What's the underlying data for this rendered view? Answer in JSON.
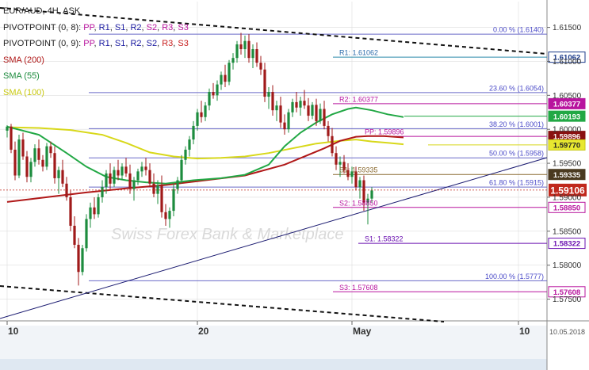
{
  "chart_data": {
    "type": "candlestick",
    "title": "EUR/AUD, 4H, ASK",
    "watermark": "Swiss Forex Bank & Marketplace",
    "date_stamp": "10.05.2018",
    "y_axis": {
      "range": [
        1.5718,
        1.6188
      ],
      "ticks": [
        "1.61500",
        "1.61000",
        "1.60500",
        "1.60000",
        "1.59500",
        "1.59000",
        "1.58500",
        "1.58000",
        "1.57500"
      ],
      "tick_values": [
        1.615,
        1.61,
        1.605,
        1.6,
        1.595,
        1.59,
        1.585,
        1.58,
        1.575
      ]
    },
    "x_axis": {
      "labels": [
        "10",
        "20",
        "May",
        "10"
      ],
      "label_bar_index": [
        0,
        48,
        87,
        129
      ]
    },
    "colors": {
      "bull": "#1d8c3e",
      "bear": "#a01a1a",
      "sma200": "#b01818",
      "sma55": "#22a845",
      "sma100": "#d8d81a",
      "pivot_line": "#1a1aa0",
      "fib_line": "#6a6ac8",
      "magenta": "#b8149e",
      "purple": "#6a10b0",
      "price": "#c0281c",
      "teal": "#2a8aaa",
      "brown": "#8a6a30",
      "grid": "#dddddd"
    },
    "legend": [
      {
        "prefix": "EUR/AUD, 4H, ASK",
        "color": "#222222",
        "items": []
      },
      {
        "prefix": "PIVOTPOINT (0, 8):",
        "color": "#222222",
        "items": [
          {
            "text": "PP",
            "color": "#b8149e"
          },
          {
            "text": "R1",
            "color": "#1a1aa0"
          },
          {
            "text": "S1",
            "color": "#1a1aa0"
          },
          {
            "text": "R2",
            "color": "#1a1aa0"
          },
          {
            "text": "S2",
            "color": "#b8149e"
          },
          {
            "text": "R3",
            "color": "#b8149e"
          },
          {
            "text": "S3",
            "color": "#b8149e"
          }
        ]
      },
      {
        "prefix": "PIVOTPOINT (0, 9):",
        "color": "#222222",
        "items": [
          {
            "text": "PP",
            "color": "#b8149e"
          },
          {
            "text": "R1",
            "color": "#1a1aa0"
          },
          {
            "text": "S1",
            "color": "#1a1aa0"
          },
          {
            "text": "R2",
            "color": "#1a1aa0"
          },
          {
            "text": "S2",
            "color": "#1a1aa0"
          },
          {
            "text": "R3",
            "color": "#c82020"
          },
          {
            "text": "S3",
            "color": "#c82020"
          }
        ]
      },
      {
        "prefix": "SMA (200)",
        "color": "#b01818",
        "items": []
      },
      {
        "prefix": "SMA (55)",
        "color": "#1d8c3e",
        "items": []
      },
      {
        "prefix": "SMA (100)",
        "color": "#c8c810",
        "items": []
      }
    ],
    "levels": [
      {
        "label": "0.00 % (1.6140)",
        "value": 1.614,
        "x_from": 112,
        "color": "#6a6ac8",
        "label_color": "#4a4ac8",
        "label_anchor": "right",
        "tag": null
      },
      {
        "label": "R1: 1.61062",
        "value": 1.61062,
        "x_from": 420,
        "color": "#2a8aaa",
        "label_color": "#2a6aaa",
        "label_anchor": "left",
        "tag": {
          "text": "1.61062",
          "bg": "#ffffff",
          "fg": "#1a3a8a",
          "border": "#1a3a8a"
        }
      },
      {
        "label": "23.60 % (1.6054)",
        "value": 1.6054,
        "x_from": 112,
        "color": "#6a6ac8",
        "label_color": "#4a4ac8",
        "label_anchor": "right",
        "tag": null
      },
      {
        "label": "R2: 1.60377",
        "value": 1.60377,
        "x_from": 420,
        "color": "#b8149e",
        "label_color": "#b8149e",
        "label_anchor": "left",
        "tag": {
          "text": "1.60377",
          "bg": "#b8149e",
          "fg": "#ffffff",
          "border": "#b8149e"
        }
      },
      {
        "label": "",
        "value": 1.60193,
        "x_from": 510,
        "color": "#22a845",
        "label_color": "#22a845",
        "label_anchor": "left",
        "tag": {
          "text": "1.60193",
          "bg": "#22a845",
          "fg": "#ffffff",
          "border": "#22a845"
        }
      },
      {
        "label": "38.20 % (1.6001)",
        "value": 1.6001,
        "x_from": 112,
        "color": "#6a6ac8",
        "label_color": "#4a4ac8",
        "label_anchor": "right",
        "tag": null
      },
      {
        "label": "PP: 1.59896",
        "value": 1.59896,
        "x_from": 452,
        "color": "#b8149e",
        "label_color": "#b8149e",
        "label_anchor": "left",
        "tag": {
          "text": "1.59896",
          "bg": "#8a1010",
          "fg": "#ffffff",
          "border": "#8a1010"
        }
      },
      {
        "label": "",
        "value": 1.5977,
        "x_from": 540,
        "color": "#d8d81a",
        "label_color": "#c8c810",
        "label_anchor": "left",
        "tag": {
          "text": "1.59770",
          "bg": "#e8e830",
          "fg": "#222222",
          "border": "#c8c810"
        }
      },
      {
        "label": "50.00 % (1.5958)",
        "value": 1.5958,
        "x_from": 112,
        "color": "#6a6ac8",
        "label_color": "#4a4ac8",
        "label_anchor": "right",
        "tag": null
      },
      {
        "label": "S1: 1.59335",
        "value": 1.59335,
        "x_from": 420,
        "color": "#8a6a30",
        "label_color": "#8a6a30",
        "label_anchor": "left",
        "tag": {
          "text": "1.59335",
          "bg": "#4a3a20",
          "fg": "#ffffff",
          "border": "#4a3a20"
        }
      },
      {
        "label": "61.80 % (1.5915)",
        "value": 1.5915,
        "x_from": 112,
        "color": "#6a6ac8",
        "label_color": "#4a4ac8",
        "label_anchor": "right",
        "tag": null
      },
      {
        "label": "S2: 1.58850",
        "value": 1.5885,
        "x_from": 420,
        "color": "#b8149e",
        "label_color": "#b8149e",
        "label_anchor": "left",
        "tag": {
          "text": "1.58850",
          "bg": "#ffffff",
          "fg": "#b8149e",
          "border": "#b8149e"
        }
      },
      {
        "label": "S1: 1.58322",
        "value": 1.58322,
        "x_from": 452,
        "color": "#6a10b0",
        "label_color": "#6a10b0",
        "label_anchor": "left",
        "tag": {
          "text": "1.58322",
          "bg": "#ffffff",
          "fg": "#6a10b0",
          "border": "#6a10b0"
        }
      },
      {
        "label": "100.00 % (1.5777)",
        "value": 1.5777,
        "x_from": 112,
        "color": "#6a6ac8",
        "label_color": "#4a4ac8",
        "label_anchor": "right",
        "tag": null
      },
      {
        "label": "S3: 1.57608",
        "value": 1.57608,
        "x_from": 420,
        "color": "#b8149e",
        "label_color": "#b8149e",
        "label_anchor": "left",
        "tag": {
          "text": "1.57608",
          "bg": "#ffffff",
          "fg": "#b8149e",
          "border": "#b8149e"
        }
      }
    ],
    "current_price": {
      "value": 1.59106,
      "text": "1.59106"
    },
    "candles": [
      [
        1.5998,
        1.6006,
        1.5988,
        1.6004
      ],
      [
        1.6004,
        1.6008,
        1.5965,
        1.597
      ],
      [
        1.597,
        1.5982,
        1.5925,
        1.5932
      ],
      [
        1.5932,
        1.5992,
        1.5928,
        1.5985
      ],
      [
        1.5985,
        1.5995,
        1.5955,
        1.596
      ],
      [
        1.596,
        1.5968,
        1.5922,
        1.593
      ],
      [
        1.593,
        1.5958,
        1.5922,
        1.5952
      ],
      [
        1.5952,
        1.5978,
        1.5945,
        1.5972
      ],
      [
        1.5972,
        1.5985,
        1.5948,
        1.5955
      ],
      [
        1.5955,
        1.5962,
        1.5938,
        1.5945
      ],
      [
        1.5945,
        1.598,
        1.594,
        1.5975
      ],
      [
        1.5975,
        1.5982,
        1.5958,
        1.5965
      ],
      [
        1.5965,
        1.5975,
        1.592,
        1.5928
      ],
      [
        1.5928,
        1.5945,
        1.5905,
        1.594
      ],
      [
        1.594,
        1.5955,
        1.5915,
        1.592
      ],
      [
        1.592,
        1.593,
        1.5895,
        1.59
      ],
      [
        1.59,
        1.591,
        1.585,
        1.5858
      ],
      [
        1.5858,
        1.5872,
        1.5825,
        1.583
      ],
      [
        1.583,
        1.584,
        1.577,
        1.579
      ],
      [
        1.579,
        1.583,
        1.5785,
        1.5825
      ],
      [
        1.5825,
        1.5875,
        1.582,
        1.5868
      ],
      [
        1.5868,
        1.5892,
        1.5855,
        1.5885
      ],
      [
        1.5885,
        1.59,
        1.5868,
        1.5875
      ],
      [
        1.5875,
        1.5905,
        1.587,
        1.59
      ],
      [
        1.59,
        1.5925,
        1.5892,
        1.5915
      ],
      [
        1.5915,
        1.594,
        1.5905,
        1.5935
      ],
      [
        1.5935,
        1.595,
        1.5912,
        1.592
      ],
      [
        1.592,
        1.5945,
        1.5915,
        1.594
      ],
      [
        1.594,
        1.5955,
        1.5925,
        1.5932
      ],
      [
        1.5932,
        1.595,
        1.5925,
        1.5945
      ],
      [
        1.5945,
        1.5958,
        1.593,
        1.5935
      ],
      [
        1.5935,
        1.5948,
        1.5905,
        1.5912
      ],
      [
        1.5912,
        1.593,
        1.5895,
        1.5925
      ],
      [
        1.5925,
        1.5942,
        1.5918,
        1.5938
      ],
      [
        1.5938,
        1.5952,
        1.593,
        1.5945
      ],
      [
        1.5945,
        1.5958,
        1.5932,
        1.594
      ],
      [
        1.594,
        1.595,
        1.5915,
        1.592
      ],
      [
        1.592,
        1.5935,
        1.59,
        1.5905
      ],
      [
        1.5905,
        1.5925,
        1.589,
        1.5918
      ],
      [
        1.5918,
        1.5932,
        1.587,
        1.5878
      ],
      [
        1.5878,
        1.589,
        1.5858,
        1.5868
      ],
      [
        1.5868,
        1.5885,
        1.5855,
        1.588
      ],
      [
        1.588,
        1.592,
        1.5872,
        1.5912
      ],
      [
        1.5912,
        1.593,
        1.5905,
        1.5925
      ],
      [
        1.5925,
        1.5962,
        1.592,
        1.5955
      ],
      [
        1.5955,
        1.5975,
        1.5948,
        1.597
      ],
      [
        1.597,
        1.599,
        1.596,
        1.5985
      ],
      [
        1.5985,
        1.6012,
        1.5978,
        1.6005
      ],
      [
        1.6005,
        1.603,
        1.5998,
        1.6025
      ],
      [
        1.6025,
        1.6042,
        1.601,
        1.6018
      ],
      [
        1.6018,
        1.604,
        1.6012,
        1.6035
      ],
      [
        1.6035,
        1.606,
        1.6028,
        1.6055
      ],
      [
        1.6055,
        1.6068,
        1.6045,
        1.605
      ],
      [
        1.605,
        1.6072,
        1.6042,
        1.6066
      ],
      [
        1.6066,
        1.6085,
        1.6058,
        1.608
      ],
      [
        1.608,
        1.6095,
        1.6062,
        1.607
      ],
      [
        1.607,
        1.6102,
        1.6065,
        1.6098
      ],
      [
        1.6098,
        1.6112,
        1.6088,
        1.6105
      ],
      [
        1.6105,
        1.613,
        1.6098,
        1.6125
      ],
      [
        1.6125,
        1.6142,
        1.611,
        1.6118
      ],
      [
        1.6118,
        1.6138,
        1.6105,
        1.613
      ],
      [
        1.613,
        1.614,
        1.6098,
        1.6105
      ],
      [
        1.6105,
        1.6125,
        1.609,
        1.6118
      ],
      [
        1.6118,
        1.6128,
        1.6092,
        1.6098
      ],
      [
        1.6098,
        1.6108,
        1.608,
        1.6088
      ],
      [
        1.6088,
        1.6098,
        1.604,
        1.6048
      ],
      [
        1.6048,
        1.6062,
        1.603,
        1.6055
      ],
      [
        1.6055,
        1.6065,
        1.602,
        1.6028
      ],
      [
        1.6028,
        1.6042,
        1.6012,
        1.6035
      ],
      [
        1.6035,
        1.6048,
        1.6002,
        1.601
      ],
      [
        1.601,
        1.6022,
        1.5992,
        1.6
      ],
      [
        1.6,
        1.603,
        1.5995,
        1.6025
      ],
      [
        1.6025,
        1.6045,
        1.6018,
        1.604
      ],
      [
        1.604,
        1.6055,
        1.6025,
        1.6032
      ],
      [
        1.6032,
        1.6048,
        1.602,
        1.6042
      ],
      [
        1.6042,
        1.6058,
        1.603,
        1.6035
      ],
      [
        1.6035,
        1.6046,
        1.6012,
        1.602
      ],
      [
        1.602,
        1.604,
        1.6015,
        1.6036
      ],
      [
        1.6036,
        1.6045,
        1.6005,
        1.6012
      ],
      [
        1.6012,
        1.6038,
        1.6008,
        1.603
      ],
      [
        1.603,
        1.6042,
        1.6,
        1.6005
      ],
      [
        1.6005,
        1.6012,
        1.5982,
        1.599
      ],
      [
        1.599,
        1.6002,
        1.596,
        1.5965
      ],
      [
        1.5965,
        1.5975,
        1.594,
        1.5948
      ],
      [
        1.5948,
        1.596,
        1.593,
        1.5952
      ],
      [
        1.5952,
        1.5962,
        1.5935,
        1.594
      ],
      [
        1.594,
        1.595,
        1.5925,
        1.593
      ],
      [
        1.593,
        1.5945,
        1.592,
        1.5938
      ],
      [
        1.5938,
        1.5945,
        1.591,
        1.5915
      ],
      [
        1.5915,
        1.593,
        1.5898,
        1.5925
      ],
      [
        1.5925,
        1.5932,
        1.588,
        1.5892
      ],
      [
        1.5892,
        1.5905,
        1.586,
        1.5898
      ],
      [
        1.5898,
        1.5915,
        1.5892,
        1.591
      ]
    ],
    "sma200": [
      [
        0,
        1.5893
      ],
      [
        10,
        1.59
      ],
      [
        20,
        1.5907
      ],
      [
        30,
        1.5913
      ],
      [
        40,
        1.5918
      ],
      [
        50,
        1.5925
      ],
      [
        60,
        1.5932
      ],
      [
        70,
        1.5948
      ],
      [
        80,
        1.5972
      ],
      [
        84,
        1.5983
      ],
      [
        88,
        1.5989
      ],
      [
        91,
        1.599
      ],
      [
        95,
        1.599
      ],
      [
        100,
        1.5988
      ]
    ],
    "sma55": [
      [
        0,
        1.6004
      ],
      [
        8,
        1.5992
      ],
      [
        15,
        1.5965
      ],
      [
        20,
        1.5945
      ],
      [
        25,
        1.593
      ],
      [
        30,
        1.5925
      ],
      [
        35,
        1.5922
      ],
      [
        40,
        1.592
      ],
      [
        47,
        1.5925
      ],
      [
        54,
        1.5928
      ],
      [
        60,
        1.5933
      ],
      [
        66,
        1.5948
      ],
      [
        70,
        1.5975
      ],
      [
        74,
        1.5995
      ],
      [
        78,
        1.601
      ],
      [
        82,
        1.6022
      ],
      [
        86,
        1.603
      ],
      [
        88,
        1.6032
      ],
      [
        92,
        1.6028
      ],
      [
        96,
        1.6022
      ],
      [
        100,
        1.6018
      ]
    ],
    "sma100": [
      [
        0,
        1.6003
      ],
      [
        8,
        1.6002
      ],
      [
        16,
        1.5999
      ],
      [
        24,
        1.5992
      ],
      [
        30,
        1.598
      ],
      [
        36,
        1.5966
      ],
      [
        42,
        1.596
      ],
      [
        48,
        1.5957
      ],
      [
        54,
        1.5958
      ],
      [
        60,
        1.596
      ],
      [
        66,
        1.5965
      ],
      [
        72,
        1.5972
      ],
      [
        78,
        1.5979
      ],
      [
        84,
        1.5983
      ],
      [
        88,
        1.5985
      ],
      [
        92,
        1.5982
      ],
      [
        96,
        1.598
      ],
      [
        100,
        1.5978
      ]
    ]
  }
}
